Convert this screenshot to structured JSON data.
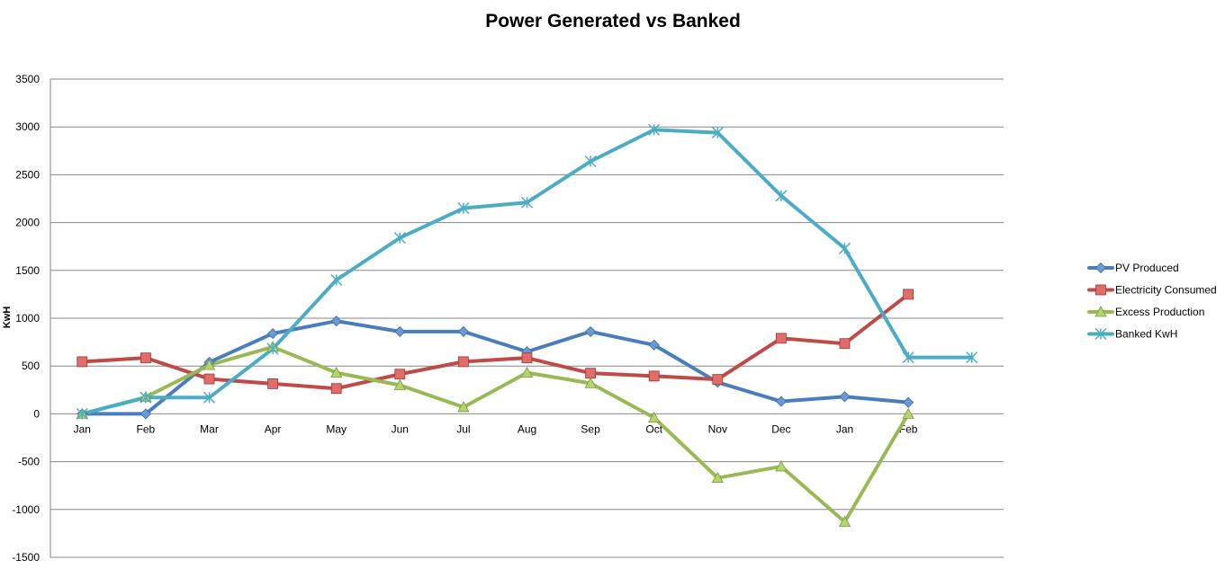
{
  "chart_data": {
    "type": "line",
    "title": "Power Generated vs Banked",
    "xlabel": "",
    "ylabel": "KwH",
    "ylim": [
      -1500,
      3500
    ],
    "y_ticks": [
      "3500",
      "3000",
      "2500",
      "2000",
      "1500",
      "1000",
      "500",
      "0",
      "-500",
      "-1000",
      "-1500"
    ],
    "categories": [
      "Jan",
      "Feb",
      "Mar",
      "Apr",
      "May",
      "Jun",
      "Jul",
      "Aug",
      "Sep",
      "Oct",
      "Nov",
      "Dec",
      "Jan",
      "Feb",
      ""
    ],
    "grid": true,
    "legend_position": "right",
    "series": [
      {
        "name": "PV Produced",
        "color": "#4a7ebb",
        "marker": "diamond",
        "values": [
          0,
          0,
          540,
          840,
          970,
          860,
          860,
          650,
          860,
          720,
          330,
          130,
          180,
          120,
          null
        ]
      },
      {
        "name": "Electricity Consumed",
        "color": "#be4b48",
        "marker": "square",
        "values": [
          545,
          585,
          365,
          315,
          265,
          415,
          545,
          585,
          425,
          395,
          360,
          790,
          735,
          1250,
          null
        ]
      },
      {
        "name": "Excess Production",
        "color": "#98b954",
        "marker": "triangle",
        "values": [
          0,
          175,
          510,
          700,
          430,
          300,
          70,
          430,
          320,
          -40,
          -670,
          -550,
          -1130,
          0,
          null
        ]
      },
      {
        "name": "Banked KwH",
        "color": "#4bacc6",
        "marker": "star",
        "values": [
          0,
          170,
          170,
          680,
          1400,
          1840,
          2150,
          2210,
          2640,
          2970,
          2940,
          2280,
          1730,
          590,
          590
        ]
      }
    ]
  }
}
